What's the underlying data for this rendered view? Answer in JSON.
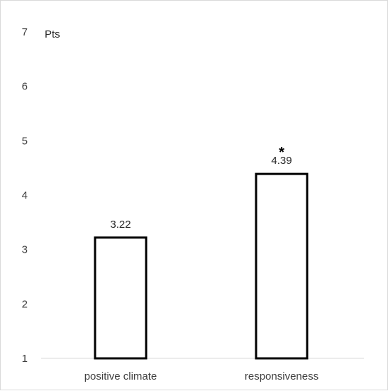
{
  "chart_data": {
    "type": "bar",
    "categories": [
      "positive climate",
      "responsiveness"
    ],
    "values": [
      3.22,
      4.39
    ],
    "data_labels": [
      "3.22",
      "4.39"
    ],
    "annotations": [
      "",
      "*"
    ],
    "unit_label": "Pts",
    "yticks": [
      "1",
      "2",
      "3",
      "4",
      "5",
      "6",
      "7"
    ],
    "ylim": [
      1,
      7
    ],
    "grid": false,
    "legend": "none",
    "bar_fill": "#ffffff",
    "bar_edge": "#000000"
  }
}
